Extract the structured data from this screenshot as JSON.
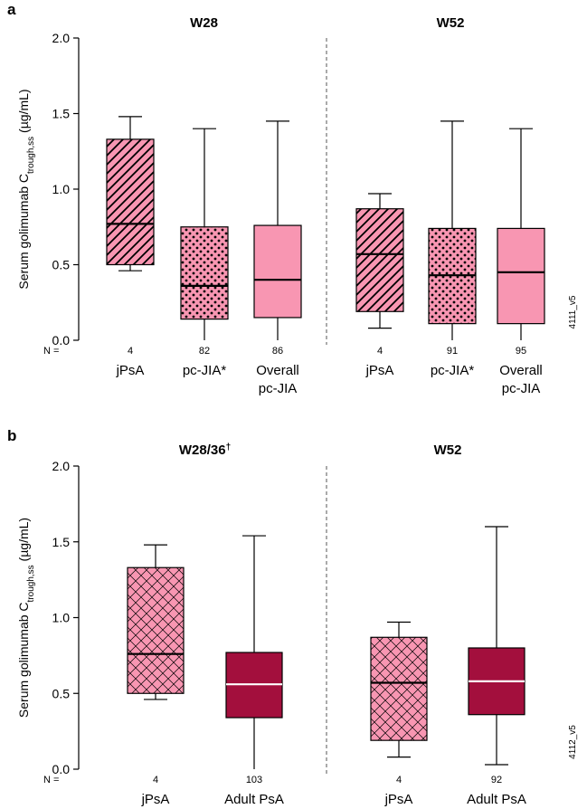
{
  "colors": {
    "pink": "#f896b2",
    "crimson": "#a30f3d",
    "axis": "#000000",
    "divider": "#555555",
    "median_light": "#ffffff"
  },
  "chart_data": [
    {
      "type": "box",
      "panel_label": "a",
      "ylabel_main": "Serum golimumab C",
      "ylabel_sub": "trough,ss",
      "ylabel_unit": "(µg/mL)",
      "ylim": [
        0,
        2.0
      ],
      "yticks": [
        "0.0",
        "0.5",
        "1.0",
        "1.5",
        "2.0"
      ],
      "n_prefix": "N =",
      "figure_code": "4111_v5",
      "groups": [
        {
          "title": "W28",
          "boxes": [
            {
              "label": [
                "jPsA"
              ],
              "n": "4",
              "pattern": "hatch",
              "fill": "pink",
              "whisker_low": 0.46,
              "q1": 0.5,
              "median": 0.77,
              "q3": 1.33,
              "whisker_high": 1.48
            },
            {
              "label": [
                "pc-JIA*"
              ],
              "n": "82",
              "pattern": "dots",
              "fill": "pink",
              "whisker_low": 0.0,
              "q1": 0.14,
              "median": 0.36,
              "q3": 0.75,
              "whisker_high": 1.4
            },
            {
              "label": [
                "Overall",
                "pc-JIA"
              ],
              "n": "86",
              "pattern": "solid",
              "fill": "pink",
              "whisker_low": 0.0,
              "q1": 0.15,
              "median": 0.4,
              "q3": 0.76,
              "whisker_high": 1.45
            }
          ]
        },
        {
          "title": "W52",
          "boxes": [
            {
              "label": [
                "jPsA"
              ],
              "n": "4",
              "pattern": "hatch",
              "fill": "pink",
              "whisker_low": 0.08,
              "q1": 0.19,
              "median": 0.57,
              "q3": 0.87,
              "whisker_high": 0.97
            },
            {
              "label": [
                "pc-JIA*"
              ],
              "n": "91",
              "pattern": "dots",
              "fill": "pink",
              "whisker_low": 0.0,
              "q1": 0.11,
              "median": 0.43,
              "q3": 0.74,
              "whisker_high": 1.45
            },
            {
              "label": [
                "Overall",
                "pc-JIA"
              ],
              "n": "95",
              "pattern": "solid",
              "fill": "pink",
              "whisker_low": 0.0,
              "q1": 0.11,
              "median": 0.45,
              "q3": 0.74,
              "whisker_high": 1.4
            }
          ]
        }
      ]
    },
    {
      "type": "box",
      "panel_label": "b",
      "ylabel_main": "Serum golimumab C",
      "ylabel_sub": "trough,ss",
      "ylabel_unit": "(µg/mL)",
      "ylim": [
        0,
        2.0
      ],
      "yticks": [
        "0.0",
        "0.5",
        "1.0",
        "1.5",
        "2.0"
      ],
      "n_prefix": "N =",
      "figure_code": "4112_v5",
      "groups": [
        {
          "title": "W28/36",
          "title_sup": "†",
          "boxes": [
            {
              "label": [
                "jPsA"
              ],
              "n": "4",
              "pattern": "crosshatch",
              "fill": "pink",
              "whisker_low": 0.46,
              "q1": 0.5,
              "median": 0.76,
              "q3": 1.33,
              "whisker_high": 1.48
            },
            {
              "label": [
                "Adult PsA"
              ],
              "n": "103",
              "pattern": "solid",
              "fill": "crimson",
              "whisker_low": 0.0,
              "q1": 0.34,
              "median": 0.56,
              "q3": 0.77,
              "whisker_high": 1.54
            }
          ]
        },
        {
          "title": "W52",
          "boxes": [
            {
              "label": [
                "jPsA"
              ],
              "n": "4",
              "pattern": "crosshatch",
              "fill": "pink",
              "whisker_low": 0.08,
              "q1": 0.19,
              "median": 0.57,
              "q3": 0.87,
              "whisker_high": 0.97
            },
            {
              "label": [
                "Adult PsA"
              ],
              "n": "92",
              "pattern": "solid",
              "fill": "crimson",
              "whisker_low": 0.03,
              "q1": 0.36,
              "median": 0.58,
              "q3": 0.8,
              "whisker_high": 1.6
            }
          ]
        }
      ]
    }
  ]
}
